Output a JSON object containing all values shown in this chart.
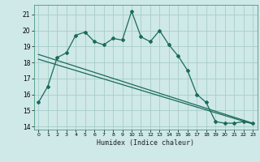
{
  "xlabel": "Humidex (Indice chaleur)",
  "ylabel": "",
  "bg_color": "#cfe8e8",
  "grid_color": "#a0c8c8",
  "line_color": "#1a6b5a",
  "xlim": [
    -0.5,
    23.5
  ],
  "ylim": [
    13.8,
    21.6
  ],
  "xticks": [
    0,
    1,
    2,
    3,
    4,
    5,
    6,
    7,
    8,
    9,
    10,
    11,
    12,
    13,
    14,
    15,
    16,
    17,
    18,
    19,
    20,
    21,
    22,
    23
  ],
  "yticks": [
    14,
    15,
    16,
    17,
    18,
    19,
    20,
    21
  ],
  "curve1_x": [
    0,
    1,
    2,
    3,
    4,
    5,
    6,
    7,
    8,
    9,
    10,
    11,
    12,
    13,
    14,
    15,
    16,
    17,
    18,
    19,
    20,
    21,
    22,
    23
  ],
  "curve1_y": [
    15.5,
    16.5,
    18.3,
    18.6,
    19.7,
    19.9,
    19.3,
    19.1,
    19.5,
    19.4,
    21.2,
    19.6,
    19.3,
    20.0,
    19.1,
    18.4,
    17.5,
    16.0,
    15.5,
    14.3,
    14.2,
    14.2,
    14.3,
    14.2
  ],
  "line2_x": [
    0,
    23
  ],
  "line2_y": [
    18.5,
    14.2
  ],
  "line3_x": [
    0,
    23
  ],
  "line3_y": [
    18.2,
    14.15
  ]
}
